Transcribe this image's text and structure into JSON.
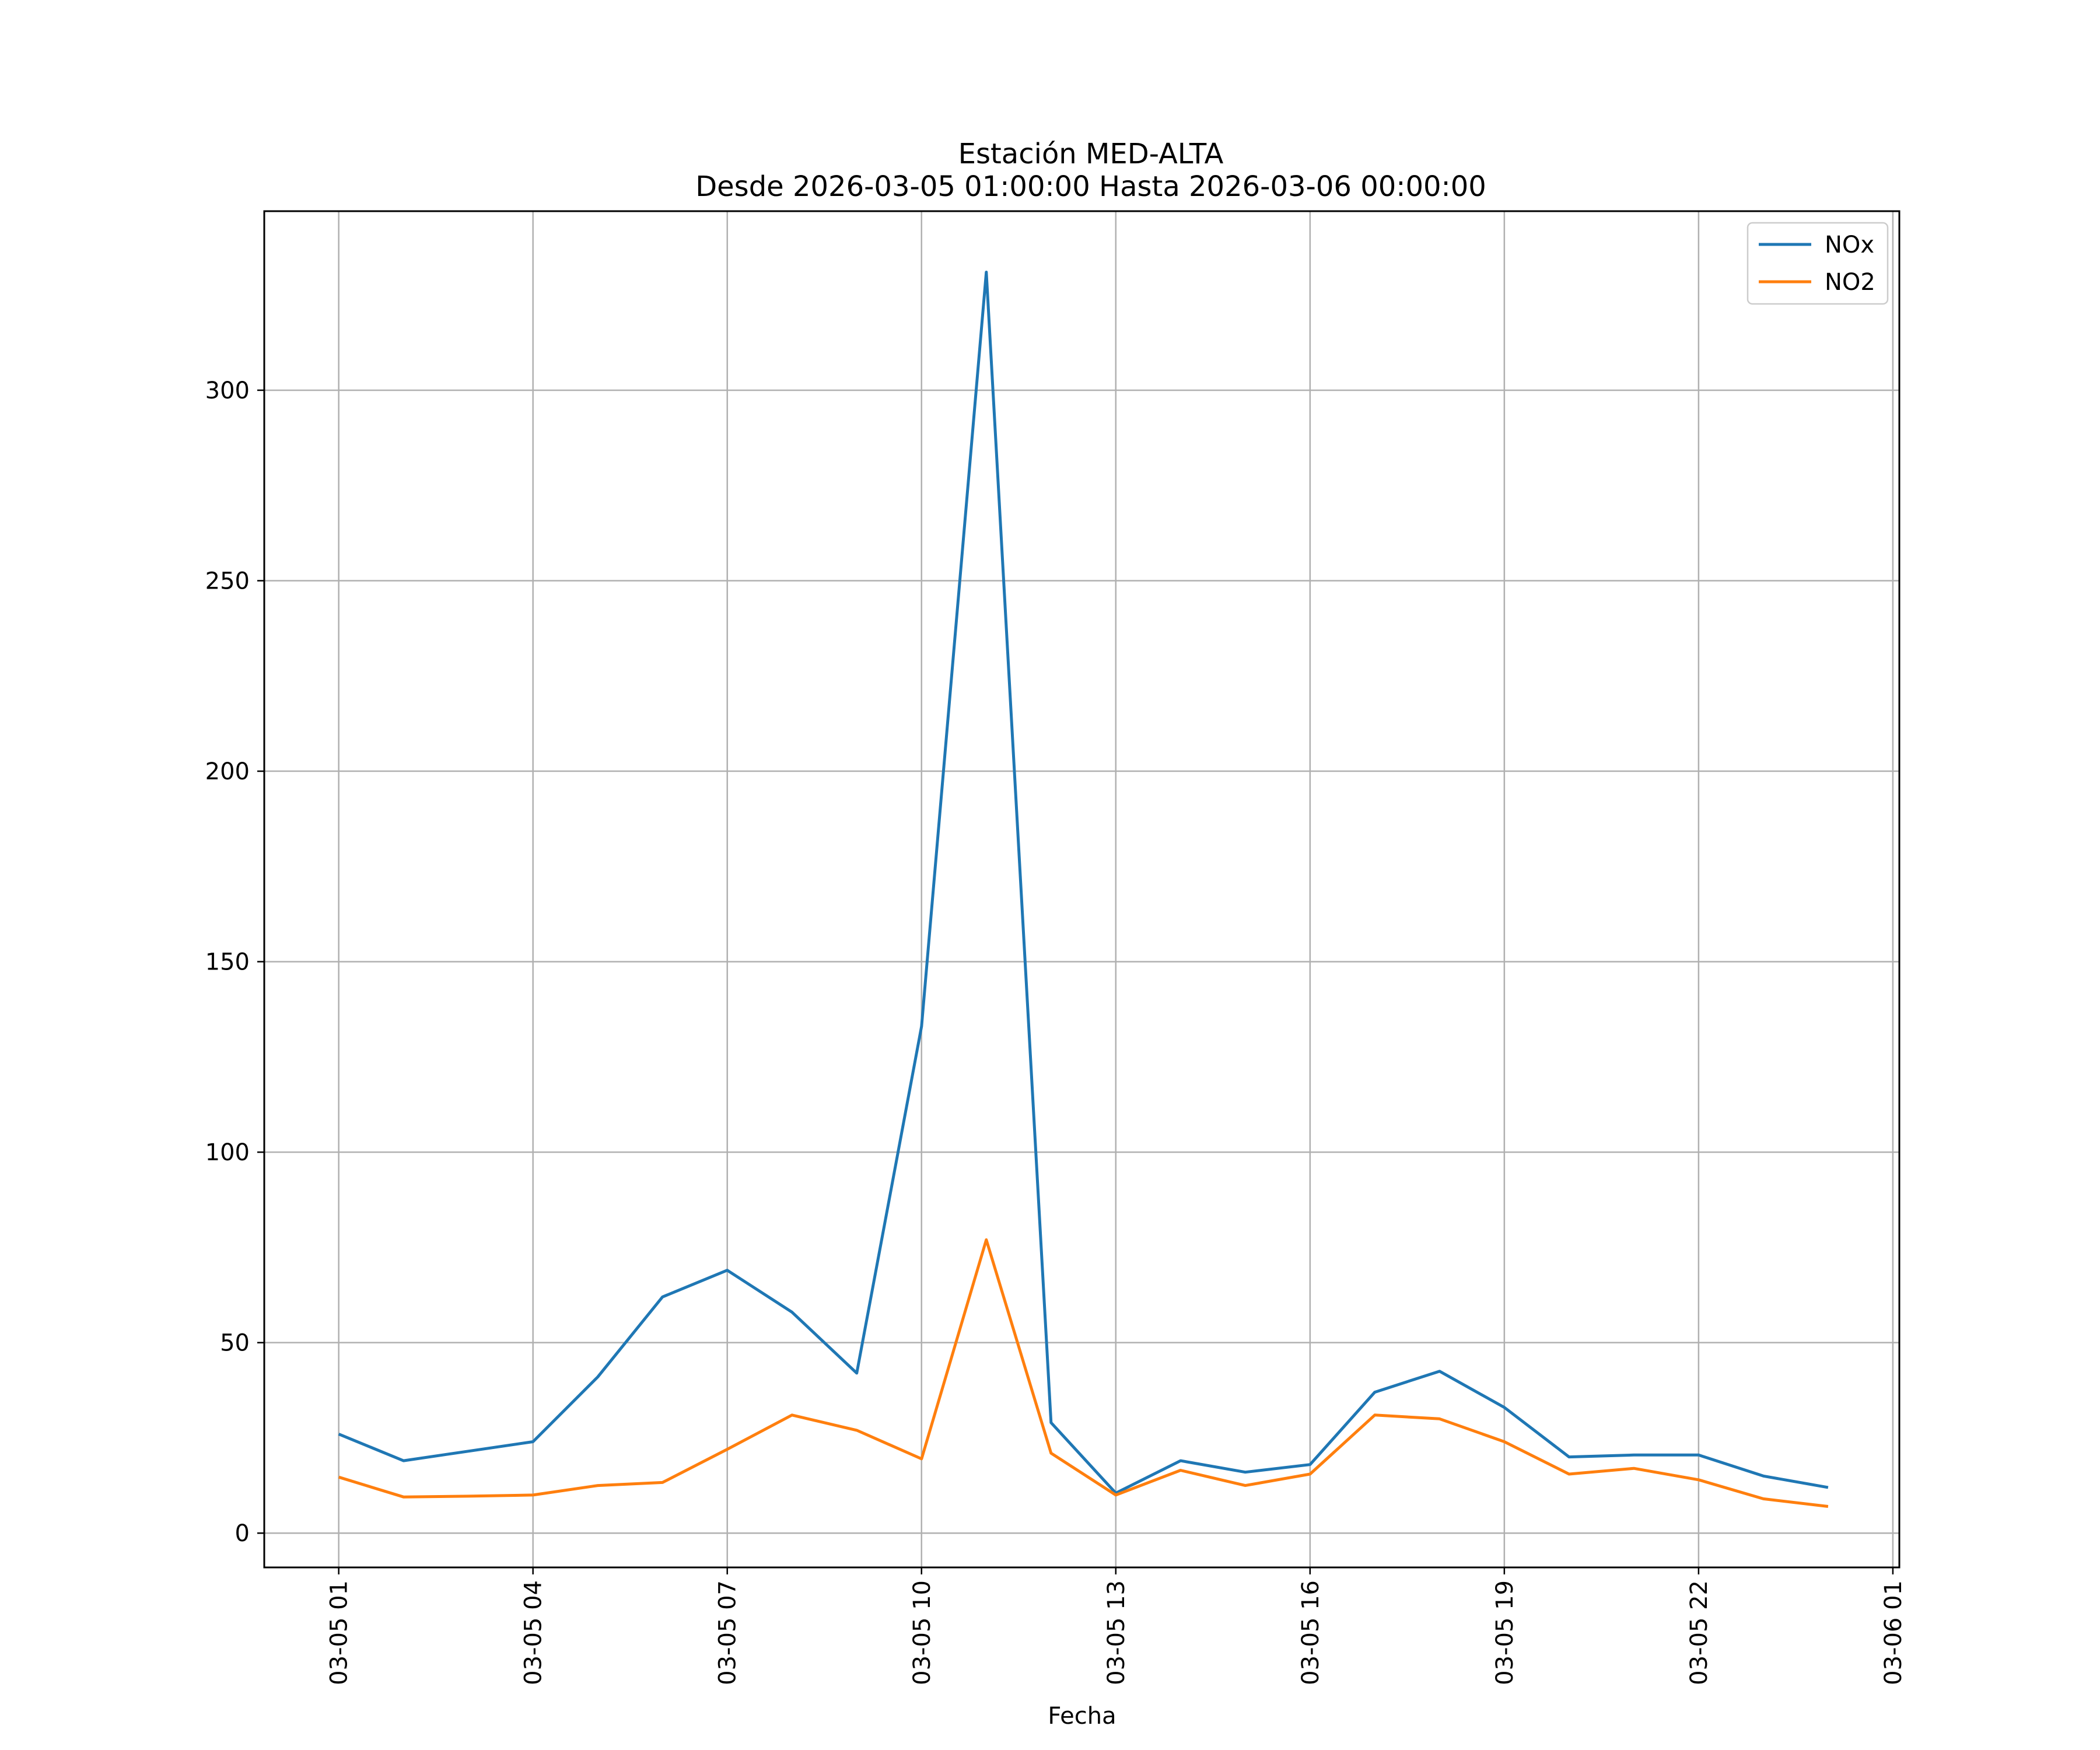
{
  "chart_data": {
    "type": "line",
    "title": "Estación MED-ALTA",
    "subtitle": "Desde 2026-03-05 01:00:00 Hasta 2026-03-06 00:00:00",
    "xlabel": "Fecha",
    "ylabel": "",
    "x": [
      "03-05 01",
      "03-05 02",
      "03-05 03",
      "03-05 04",
      "03-05 05",
      "03-05 06",
      "03-05 07",
      "03-05 08",
      "03-05 09",
      "03-05 10",
      "03-05 11",
      "03-05 12",
      "03-05 13",
      "03-05 14",
      "03-05 15",
      "03-05 16",
      "03-05 17",
      "03-05 18",
      "03-05 19",
      "03-05 20",
      "03-05 21",
      "03-05 22",
      "03-05 23",
      "03-06 00"
    ],
    "series": [
      {
        "name": "NOx",
        "color": "#1f77b4",
        "values": [
          26,
          19,
          21.5,
          24,
          41,
          62,
          69,
          58,
          42,
          133,
          331,
          29,
          10.5,
          19,
          16,
          18,
          37,
          42.5,
          33,
          20,
          20.5,
          20.5,
          15,
          12
        ]
      },
      {
        "name": "NO2",
        "color": "#ff7f0e",
        "values": [
          14.7,
          9.5,
          9.7,
          10,
          12.5,
          13.3,
          22,
          31,
          27,
          19.5,
          77,
          21,
          10,
          16.5,
          12.5,
          15.5,
          31,
          30,
          24,
          15.5,
          17,
          14,
          9,
          7
        ]
      }
    ],
    "xticks": [
      "03-05 01",
      "03-05 04",
      "03-05 07",
      "03-05 10",
      "03-05 13",
      "03-05 16",
      "03-05 19",
      "03-05 22",
      "03-06 01"
    ],
    "xtick_hours": [
      0,
      3,
      6,
      9,
      12,
      15,
      18,
      21,
      24
    ],
    "yticks": [
      0,
      50,
      100,
      150,
      200,
      250,
      300
    ],
    "xlim": [
      -1.15,
      24.1
    ],
    "ylim": [
      -9,
      347
    ],
    "grid": true,
    "legend_position": "top-right"
  }
}
